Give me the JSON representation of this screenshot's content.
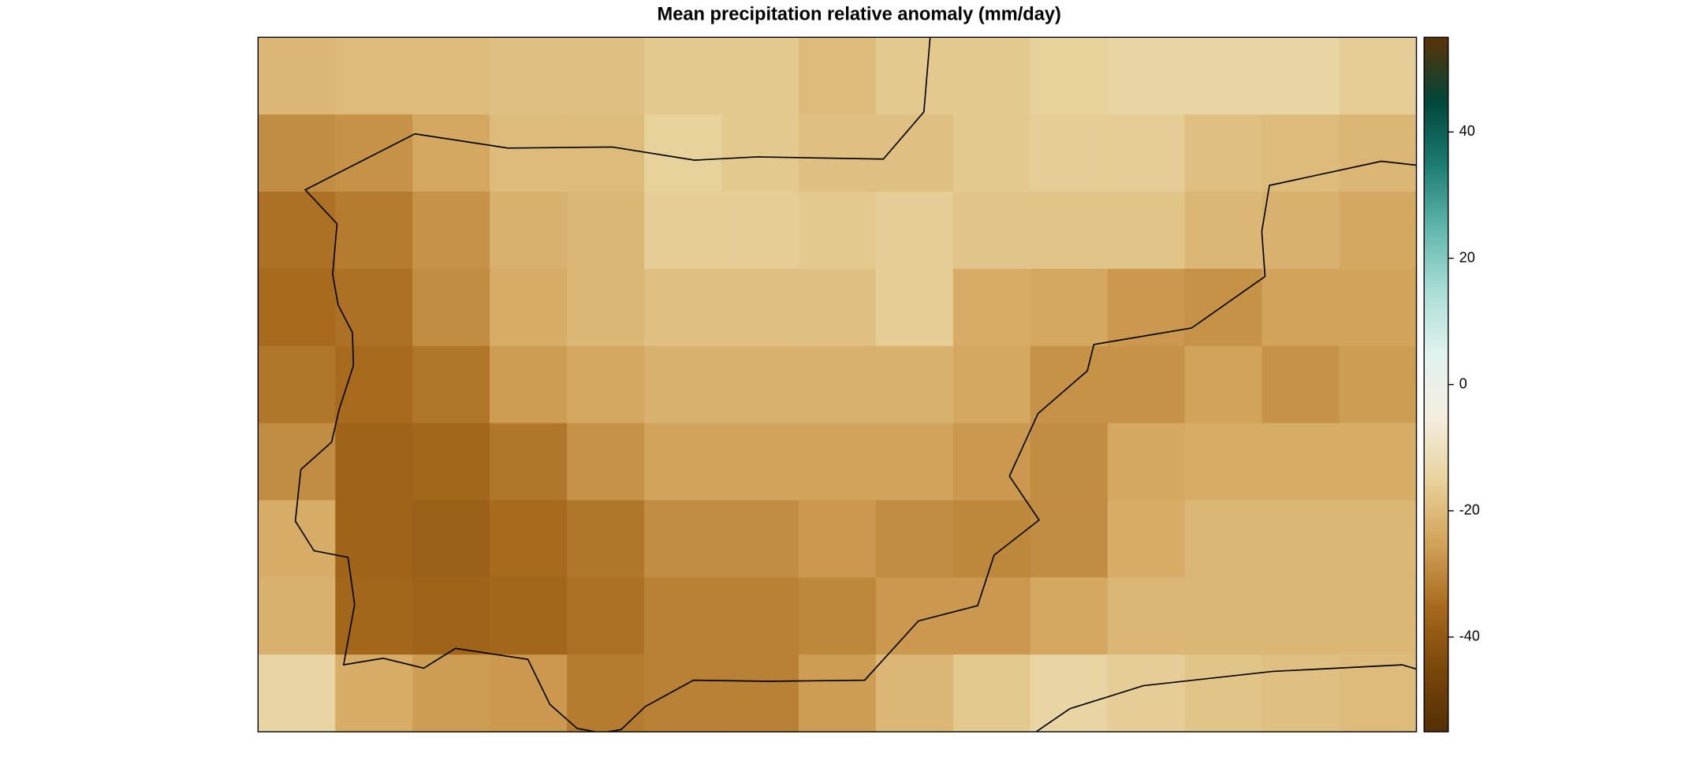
{
  "chart_data": {
    "type": "heatmap",
    "title": "Mean precipitation relative anomaly (mm/day)",
    "values": [
      [
        -21,
        -20,
        -20,
        -19,
        -19,
        -17,
        -17,
        -20,
        -17,
        -17,
        -15,
        -14,
        -14,
        -14,
        -16
      ],
      [
        -29,
        -28,
        -24,
        -20,
        -20,
        -15,
        -17,
        -19,
        -19,
        -17,
        -16,
        -16,
        -19,
        -20,
        -21
      ],
      [
        -34,
        -32,
        -28,
        -22,
        -21,
        -16,
        -16,
        -17,
        -16,
        -18,
        -18,
        -18,
        -21,
        -22,
        -24
      ],
      [
        -35,
        -34,
        -29,
        -23,
        -21,
        -19,
        -19,
        -19,
        -16,
        -23,
        -24,
        -27,
        -28,
        -25,
        -25
      ],
      [
        -33,
        -35,
        -33,
        -26,
        -24,
        -22,
        -22,
        -22,
        -22,
        -24,
        -28,
        -28,
        -25,
        -28,
        -26
      ],
      [
        -29,
        -37,
        -36,
        -33,
        -28,
        -25,
        -25,
        -25,
        -25,
        -27,
        -29,
        -24,
        -23,
        -23,
        -23
      ],
      [
        -23,
        -37,
        -38,
        -35,
        -33,
        -29,
        -29,
        -27,
        -29,
        -30,
        -29,
        -23,
        -21,
        -21,
        -21
      ],
      [
        -22,
        -36,
        -37,
        -36,
        -34,
        -31,
        -31,
        -30,
        -27,
        -27,
        -24,
        -21,
        -21,
        -21,
        -21
      ],
      [
        -14,
        -23,
        -26,
        -27,
        -32,
        -31,
        -31,
        -26,
        -21,
        -17,
        -14,
        -16,
        -18,
        -19,
        -20
      ]
    ],
    "zlim": [
      -55,
      55
    ],
    "zticks": [
      -40,
      -20,
      0,
      20,
      40
    ],
    "palette": [
      "#543005",
      "#7a4709",
      "#a86b1e",
      "#d2a35a",
      "#e8d29c",
      "#f4eee0",
      "#e0f2ef",
      "#a8ddd5",
      "#5fb5ab",
      "#1c7c72",
      "#01463a",
      "#5a3206"
    ]
  }
}
